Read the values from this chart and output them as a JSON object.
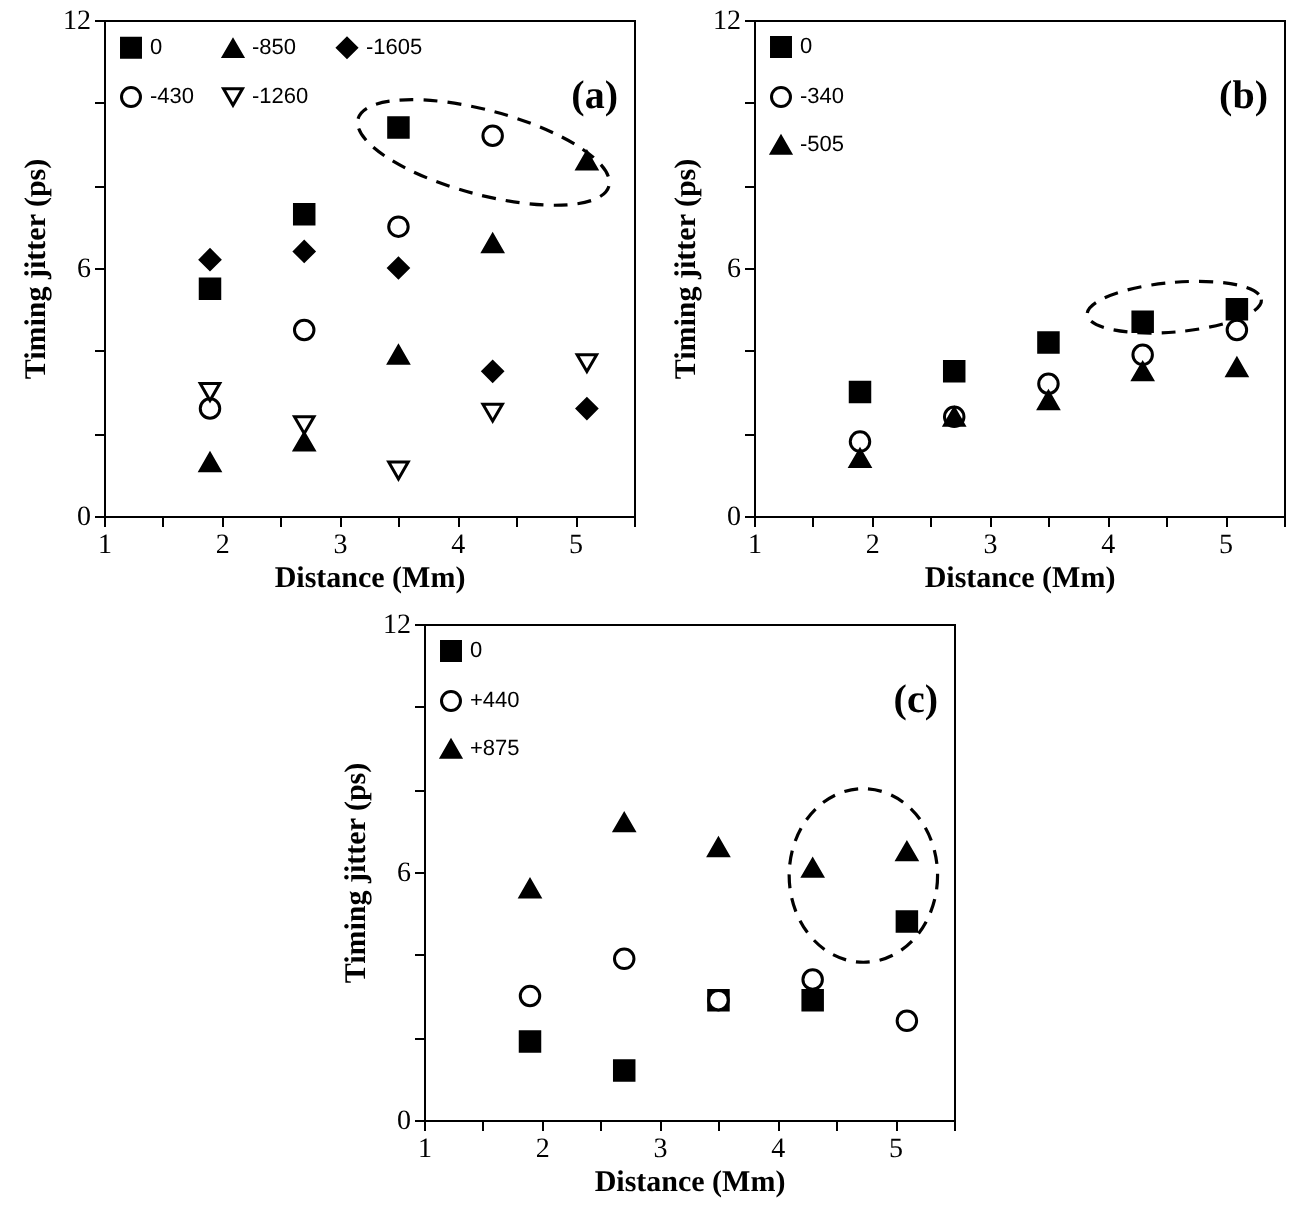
{
  "chart_data": [
    {
      "type": "scatter",
      "xlabel": "Distance (Mm)",
      "ylabel": "Timing jitter (ps)",
      "annotations": [
        "(a)"
      ],
      "xlim": [
        1,
        5.5
      ],
      "ylim": [
        0,
        12
      ],
      "xticks": [
        1,
        {
          "value": 1.5,
          "label": null
        },
        2,
        {
          "value": 2.5,
          "label": null
        },
        3,
        {
          "value": 3.5,
          "label": null
        },
        4,
        {
          "value": 4.5,
          "label": null
        },
        5,
        {
          "value": 5.5,
          "label": null
        }
      ],
      "yticks": [
        0,
        {
          "value": 2,
          "label": null
        },
        {
          "value": 4,
          "label": null
        },
        6,
        {
          "value": 8,
          "label": null
        },
        {
          "value": 10,
          "label": null
        },
        12
      ],
      "legend": "top left",
      "x": [
        1.9,
        2.7,
        3.5,
        4.3,
        5.1
      ],
      "series": [
        {
          "name": "0",
          "color": "#000000",
          "marker": "square",
          "values": [
            5.5,
            7.3,
            9.4,
            null,
            null
          ]
        },
        {
          "name": "-430",
          "color": "#ffffff",
          "marker": "circle",
          "values": [
            2.6,
            4.5,
            7.0,
            9.2,
            null
          ]
        },
        {
          "name": "-850",
          "color": "#000000",
          "marker": "triangle",
          "values": [
            1.3,
            1.8,
            3.9,
            6.6,
            8.6
          ]
        },
        {
          "name": "-1260",
          "color": "#ffffff",
          "marker": "triangle-down",
          "values": [
            3.0,
            2.2,
            1.1,
            2.5,
            3.7
          ]
        },
        {
          "name": "-1605",
          "color": "#000000",
          "marker": "diamond",
          "values": [
            6.2,
            6.4,
            6.0,
            3.5,
            2.6
          ]
        }
      ]
    },
    {
      "type": "scatter",
      "xlabel": "Distance (Mm)",
      "ylabel": "Timing jitter (ps)",
      "annotations": [
        "(b)"
      ],
      "xlim": [
        1,
        5.5
      ],
      "ylim": [
        0,
        12
      ],
      "xticks": [
        1,
        {
          "value": 1.5,
          "label": null
        },
        2,
        {
          "value": 2.5,
          "label": null
        },
        3,
        {
          "value": 3.5,
          "label": null
        },
        4,
        {
          "value": 4.5,
          "label": null
        },
        5,
        {
          "value": 5.5,
          "label": null
        }
      ],
      "yticks": [
        0,
        {
          "value": 2,
          "label": null
        },
        {
          "value": 4,
          "label": null
        },
        6,
        {
          "value": 8,
          "label": null
        },
        {
          "value": 10,
          "label": null
        },
        12
      ],
      "legend": "top left",
      "x": [
        1.9,
        2.7,
        3.5,
        4.3,
        5.1
      ],
      "series": [
        {
          "name": "0",
          "color": "#000000",
          "marker": "square",
          "values": [
            3.0,
            3.5,
            4.2,
            4.7,
            5.0
          ]
        },
        {
          "name": "-340",
          "color": "#ffffff",
          "marker": "circle",
          "values": [
            1.8,
            2.4,
            3.2,
            3.9,
            4.5
          ]
        },
        {
          "name": "-505",
          "color": "#000000",
          "marker": "triangle",
          "values": [
            1.4,
            2.4,
            2.8,
            3.5,
            3.6
          ]
        }
      ]
    },
    {
      "type": "scatter",
      "xlabel": "Distance (Mm)",
      "ylabel": "Timing jitter (ps)",
      "annotations": [
        "(c)"
      ],
      "xlim": [
        1,
        5.5
      ],
      "ylim": [
        0,
        12
      ],
      "xticks": [
        1,
        {
          "value": 1.5,
          "label": null
        },
        2,
        {
          "value": 2.5,
          "label": null
        },
        3,
        {
          "value": 3.5,
          "label": null
        },
        4,
        {
          "value": 4.5,
          "label": null
        },
        5,
        {
          "value": 5.5,
          "label": null
        }
      ],
      "yticks": [
        0,
        {
          "value": 2,
          "label": null
        },
        {
          "value": 4,
          "label": null
        },
        6,
        {
          "value": 8,
          "label": null
        },
        {
          "value": 10,
          "label": null
        },
        12
      ],
      "legend": "top left",
      "x": [
        1.9,
        2.7,
        3.5,
        4.3,
        5.1
      ],
      "series": [
        {
          "name": "0",
          "color": "#000000",
          "marker": "square",
          "values": [
            1.9,
            1.2,
            2.9,
            2.9,
            4.8
          ]
        },
        {
          "name": "+440",
          "color": "#ffffff",
          "marker": "circle",
          "values": [
            3.0,
            3.9,
            2.9,
            3.4,
            2.4
          ]
        },
        {
          "name": "+875",
          "color": "#000000",
          "marker": "triangle",
          "values": [
            5.6,
            7.2,
            6.6,
            6.1,
            6.5
          ]
        }
      ]
    }
  ]
}
